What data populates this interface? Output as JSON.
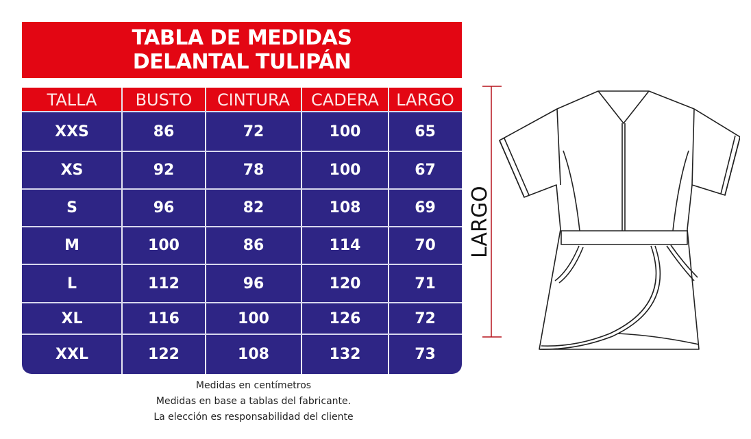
{
  "title": {
    "line1": "TABLA DE MEDIDAS",
    "line2": "DELANTAL TULIPÁN"
  },
  "colors": {
    "header_red": "#e30613",
    "table_blue": "#2e2585",
    "measure_line": "#b5121b"
  },
  "table": {
    "columns": [
      "TALLA",
      "BUSTO",
      "CINTURA",
      "CADERA",
      "LARGO"
    ],
    "rows": [
      [
        "XXS",
        "86",
        "72",
        "100",
        "65"
      ],
      [
        "XS",
        "92",
        "78",
        "100",
        "67"
      ],
      [
        "S",
        "96",
        "82",
        "108",
        "69"
      ],
      [
        "M",
        "100",
        "86",
        "114",
        "70"
      ],
      [
        "L",
        "112",
        "96",
        "120",
        "71"
      ],
      [
        "XL",
        "116",
        "100",
        "126",
        "72"
      ],
      [
        "XXL",
        "122",
        "108",
        "132",
        "73"
      ]
    ]
  },
  "notes": [
    "Medidas en centímetros",
    "Medidas en base a tablas del fabricante.",
    "La elección es responsabilidad del cliente"
  ],
  "diagram": {
    "measure_label": "LARGO",
    "garment_icon": "apron-tulip-icon"
  }
}
